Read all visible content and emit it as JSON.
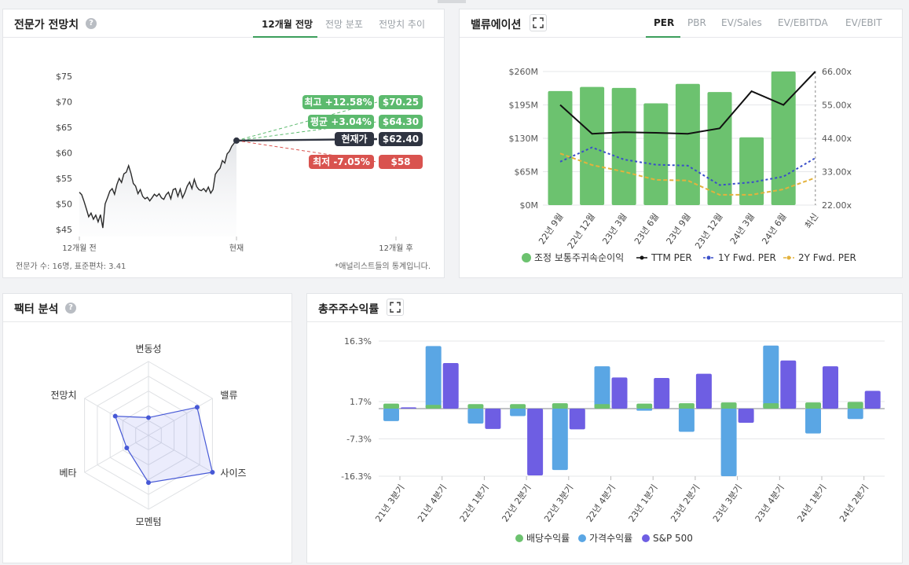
{
  "forecast": {
    "title": "전문가 전망치",
    "help_glyph": "?",
    "tabs": [
      "12개월 전망",
      "전망 분포",
      "전망치 추이"
    ],
    "active_tab": 0,
    "y_ticks": [
      "$75",
      "$70",
      "$65",
      "$60",
      "$55",
      "$50",
      "$45"
    ],
    "x_labels": [
      "12개월 전",
      "현재",
      "12개월 후"
    ],
    "targets": [
      {
        "label": "최고 +12.58%",
        "value": "$70.25",
        "color": "#5cba6e"
      },
      {
        "label": "평균 +3.04%",
        "value": "$64.30",
        "color": "#5cba6e"
      },
      {
        "label": "현재가",
        "value": "$62.40",
        "color": "#2f3441"
      },
      {
        "label": "최저 -7.05%",
        "value": "$58",
        "color": "#d9534f"
      }
    ],
    "footer_left": "전문가 수: 16명, 표준편차: 3.41",
    "footer_right": "*애널리스트들의 통계입니다."
  },
  "valuation": {
    "title": "밸류에이션",
    "tabs": [
      "PER",
      "PBR",
      "EV/Sales",
      "EV/EBITDA",
      "EV/EBIT"
    ],
    "active_tab": 0,
    "legend": [
      "조정 보통주귀속순이익",
      "TTM PER",
      "1Y Fwd. PER",
      "2Y Fwd. PER"
    ]
  },
  "factor": {
    "title": "팩터 분석",
    "help_glyph": "?",
    "axes": [
      "변동성",
      "밸류",
      "사이즈",
      "모멘텀",
      "베타",
      "전망치"
    ]
  },
  "tsr": {
    "title": "총주주수익률",
    "legend": [
      "배당수익률",
      "가격수익률",
      "S&P 500"
    ]
  },
  "colors": {
    "green": "#6cc26f",
    "blue": "#5aa6e4",
    "purple": "#6e5ee3",
    "black": "#111111",
    "fwd1": "#3a4fc9",
    "fwd2": "#e3b23c",
    "red": "#d9534f",
    "dark": "#2f3441"
  },
  "chart_data": [
    {
      "type": "line",
      "title": "",
      "ylim": [
        45,
        75
      ],
      "y_ticks": [
        75,
        70,
        65,
        60,
        55,
        50,
        45
      ],
      "x_labels": [
        "12개월 전",
        "현재",
        "12개월 후"
      ],
      "series": [
        {
          "name": "",
          "values": [
            52.3,
            51.8,
            50.5,
            49.0,
            47.5,
            48.2,
            47.0,
            47.8,
            46.5,
            47.9,
            45.3,
            50.0,
            51.2,
            52.5,
            53.0,
            51.9,
            53.8,
            55.0,
            54.2,
            55.9,
            56.2,
            57.5,
            56.0,
            54.0,
            53.5,
            52.0,
            52.8,
            51.5,
            51.0,
            51.3,
            50.6,
            51.2,
            51.9,
            51.5,
            52.0,
            51.2,
            50.9,
            51.8,
            52.3,
            51.0,
            52.8,
            53.0,
            51.5,
            52.9,
            51.2,
            52.2,
            53.5,
            54.3,
            53.0,
            54.8,
            53.4,
            52.8,
            52.6,
            53.0,
            52.4,
            53.3,
            52.1,
            52.8,
            55.8,
            56.5,
            57.0,
            58.5,
            58.0,
            59.8,
            60.3,
            61.3,
            61.9,
            62.4
          ]
        }
      ],
      "targets": {
        "high": 70.25,
        "mean": 64.3,
        "current": 62.4,
        "low": 58
      }
    },
    {
      "type": "bar",
      "title": "",
      "categories": [
        "22년 9월",
        "22년 12월",
        "23년 3월",
        "23년 6월",
        "23년 9월",
        "23년 12월",
        "24년 3월",
        "24년 6월",
        "최신"
      ],
      "y_left_ticks": [
        "$260M",
        "$195M",
        "$130M",
        "$65M",
        "$0M"
      ],
      "y_right_ticks": [
        "66.00x",
        "55.00x",
        "44.00x",
        "33.00x",
        "22.00x"
      ],
      "ylim_left": [
        0,
        260
      ],
      "ylim_right": [
        22,
        66
      ],
      "series": [
        {
          "name": "조정 보통주귀속순이익",
          "type": "bar",
          "values": [
            222,
            230,
            228,
            198,
            236,
            220,
            132,
            260,
            null
          ]
        },
        {
          "name": "TTM PER",
          "type": "line",
          "values": [
            55.0,
            45.5,
            46.0,
            45.8,
            45.5,
            47.3,
            59.5,
            55.0,
            66.0
          ]
        },
        {
          "name": "1Y Fwd. PER",
          "type": "line",
          "values": [
            36.3,
            41.0,
            37.0,
            35.3,
            35.0,
            28.6,
            29.5,
            31.4,
            37.5
          ]
        },
        {
          "name": "2Y Fwd. PER",
          "type": "line",
          "values": [
            39.0,
            35.2,
            33.0,
            30.3,
            30.1,
            25.4,
            25.4,
            27.2,
            31.0
          ]
        }
      ]
    },
    {
      "type": "line",
      "title": "",
      "axes": [
        "변동성",
        "밸류",
        "사이즈",
        "모멘텀",
        "베타",
        "전망치"
      ],
      "max": 5,
      "series": [
        {
          "name": "",
          "values": [
            1.2,
            3.8,
            5.0,
            3.2,
            1.7,
            2.6
          ]
        }
      ]
    },
    {
      "type": "bar",
      "title": "",
      "categories": [
        "21년 3분기",
        "21년 4분기",
        "22년 1분기",
        "22년 2분기",
        "22년 3분기",
        "22년 4분기",
        "23년 1분기",
        "23년 2분기",
        "23년 3분기",
        "23년 4분기",
        "24년 1분기",
        "24년 2분기"
      ],
      "y_ticks": [
        "16.3%",
        "1.7%",
        "-7.3%",
        "-16.3%"
      ],
      "ylim": [
        -16.3,
        16.3
      ],
      "series": [
        {
          "name": "배당수익률",
          "values": [
            1.2,
            0.9,
            1.1,
            1.1,
            1.3,
            1.1,
            1.2,
            1.3,
            1.5,
            1.3,
            1.5,
            1.6
          ]
        },
        {
          "name": "가격수익률",
          "values": [
            -3.0,
            15.1,
            -3.6,
            -1.8,
            -14.8,
            10.2,
            -0.5,
            -5.6,
            -16.3,
            15.2,
            -6.0,
            -2.5
          ]
        },
        {
          "name": "S&P 500",
          "values": [
            0.3,
            11.0,
            -4.9,
            -16.1,
            -5.0,
            7.5,
            7.4,
            8.4,
            -3.4,
            11.6,
            10.2,
            4.3
          ]
        }
      ]
    }
  ]
}
